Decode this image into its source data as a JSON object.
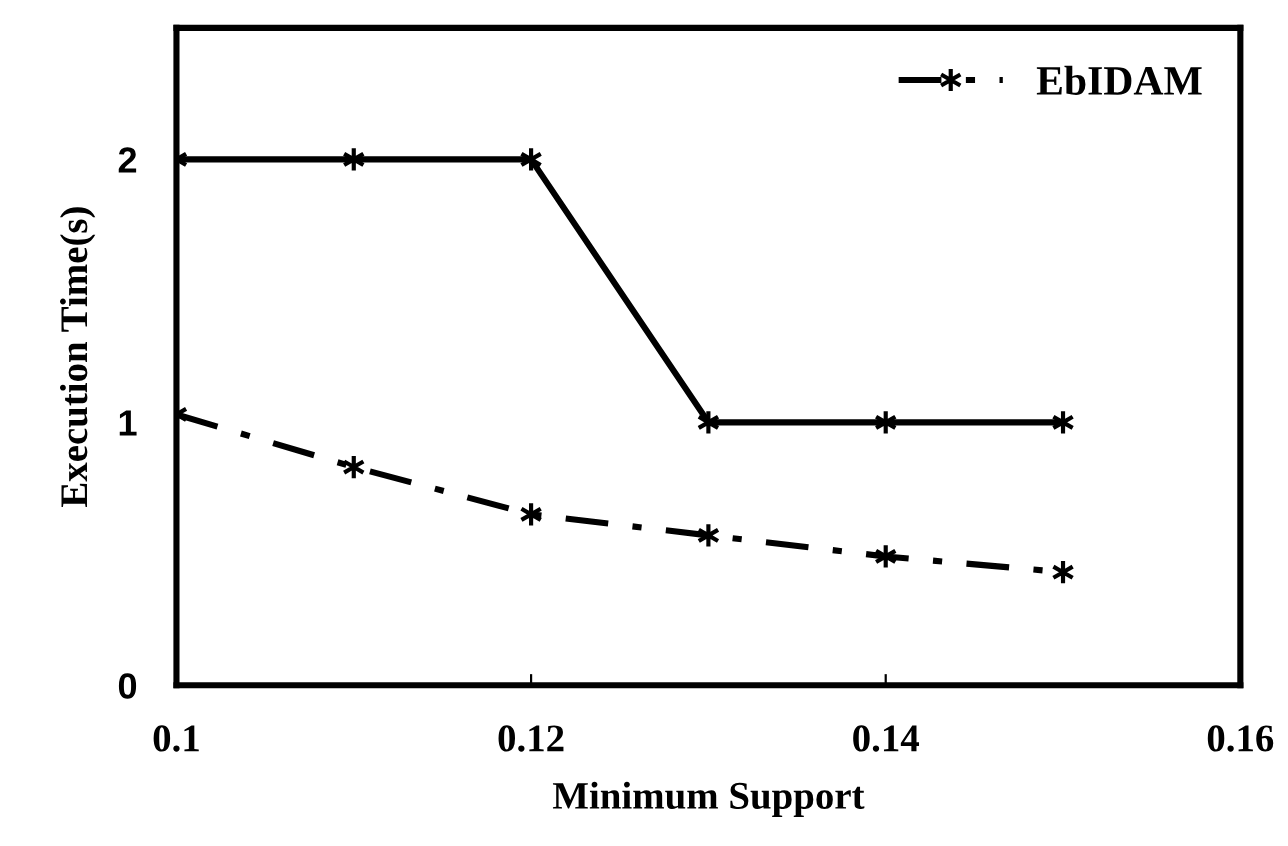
{
  "chart_data": {
    "type": "line",
    "xlabel": "Minimum Support",
    "ylabel": "Execution Time(s)",
    "x": [
      0.1,
      0.11,
      0.12,
      0.13,
      0.14,
      0.15
    ],
    "series": [
      {
        "color": "#000000",
        "values": [
          2,
          2,
          2,
          1,
          1,
          1
        ],
        "line_style": "solid"
      },
      {
        "name": "EbIDAM",
        "color": "#000000",
        "values": [
          1.03,
          0.83,
          0.65,
          0.57,
          0.49,
          0.43
        ],
        "line_style": "dashdot"
      }
    ],
    "xlim": [
      0.1,
      0.16
    ],
    "xticks": [
      0.1,
      0.12,
      0.14,
      0.16
    ],
    "ylim": [
      0,
      2.5
    ],
    "yticks": [
      0,
      1,
      2
    ],
    "marker": "cross",
    "grid": false,
    "legend": "top right"
  }
}
